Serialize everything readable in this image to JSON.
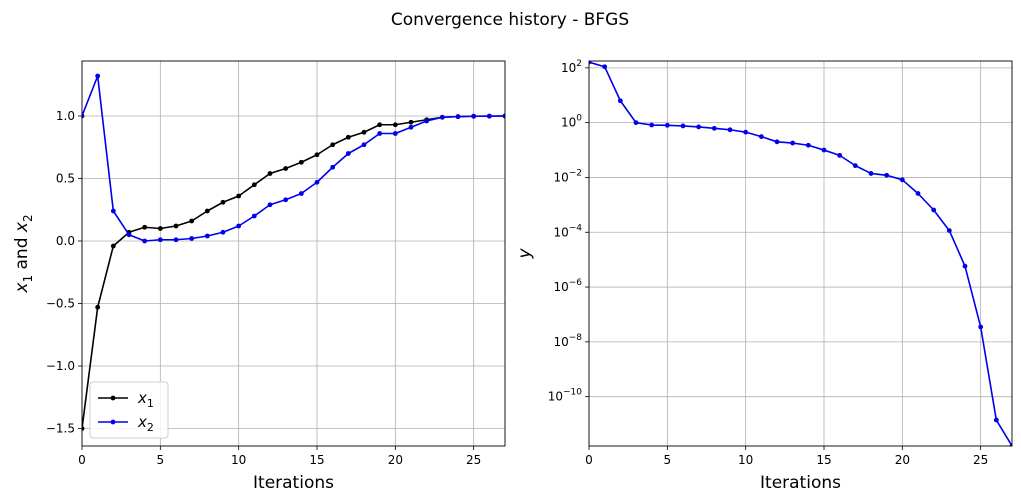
{
  "figure": {
    "suptitle": "Convergence history - BFGS"
  },
  "chart_data": [
    {
      "type": "line",
      "title": "",
      "xlabel": "Iterations",
      "ylabel": "x1 and x2",
      "ylabel_parts": {
        "v1": "x",
        "s1": "1",
        "mid": " and ",
        "v2": "x",
        "s2": "2"
      },
      "xlim": [
        0,
        27
      ],
      "ylim": [
        -1.64,
        1.44
      ],
      "xticks": [
        0,
        5,
        10,
        15,
        20,
        25
      ],
      "yticks": [
        -1.5,
        -1.0,
        -0.5,
        0.0,
        0.5,
        1.0
      ],
      "ytick_labels": [
        "−1.5",
        "−1.0",
        "−0.5",
        "0.0",
        "0.5",
        "1.0"
      ],
      "grid": true,
      "legend": "lower-left",
      "x": [
        0,
        1,
        2,
        3,
        4,
        5,
        6,
        7,
        8,
        9,
        10,
        11,
        12,
        13,
        14,
        15,
        16,
        17,
        18,
        19,
        20,
        21,
        22,
        23,
        24,
        25,
        26,
        27
      ],
      "series": [
        {
          "name": "x1",
          "legend_parts": {
            "var": "x",
            "sub": "1"
          },
          "color": "#000000",
          "values": [
            -1.5,
            -0.53,
            -0.04,
            0.07,
            0.11,
            0.1,
            0.12,
            0.16,
            0.24,
            0.31,
            0.36,
            0.45,
            0.54,
            0.58,
            0.63,
            0.69,
            0.77,
            0.83,
            0.87,
            0.93,
            0.93,
            0.95,
            0.97,
            0.99,
            0.995,
            0.998,
            0.999,
            1.0
          ]
        },
        {
          "name": "x2",
          "legend_parts": {
            "var": "x",
            "sub": "2"
          },
          "color": "#0000ee",
          "values": [
            1.0,
            1.32,
            0.24,
            0.05,
            0.0,
            0.01,
            0.01,
            0.02,
            0.04,
            0.07,
            0.12,
            0.2,
            0.29,
            0.33,
            0.38,
            0.47,
            0.59,
            0.7,
            0.77,
            0.86,
            0.86,
            0.91,
            0.96,
            0.99,
            0.995,
            0.998,
            0.999,
            1.0
          ]
        }
      ]
    },
    {
      "type": "line",
      "title": "",
      "xlabel": "Iterations",
      "ylabel": "y",
      "xlim": [
        0,
        27
      ],
      "ylim_log10": [
        -11.8,
        2.25
      ],
      "yscale": "log",
      "xticks": [
        0,
        5,
        10,
        15,
        20,
        25
      ],
      "yticks_exp": [
        -10,
        -8,
        -6,
        -4,
        -2,
        0,
        2
      ],
      "ytick_base": "10",
      "grid": true,
      "legend": "none",
      "x": [
        0,
        1,
        2,
        3,
        4,
        5,
        6,
        7,
        8,
        9,
        10,
        11,
        12,
        13,
        14,
        15,
        16,
        17,
        18,
        19,
        20,
        21,
        22,
        23,
        24,
        25,
        26,
        27
      ],
      "series": [
        {
          "name": "y",
          "color": "#0000ee",
          "values": [
            162,
            110,
            6.3,
            1.0,
            0.82,
            0.8,
            0.76,
            0.7,
            0.62,
            0.55,
            0.45,
            0.31,
            0.2,
            0.18,
            0.15,
            0.1,
            0.064,
            0.027,
            0.014,
            0.012,
            0.0082,
            0.0026,
            0.00065,
            0.000115,
            5.8e-06,
            3.5e-08,
            1.4e-11,
            1.6e-12
          ]
        }
      ]
    }
  ]
}
